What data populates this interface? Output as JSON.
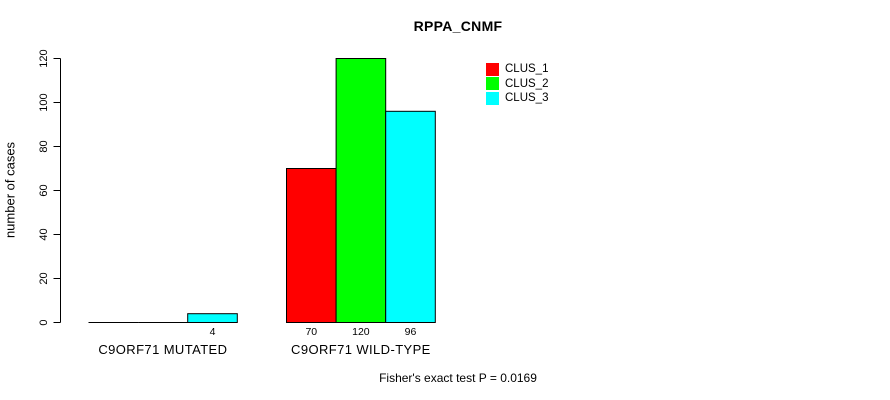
{
  "chart_data": {
    "type": "bar",
    "title": "RPPA_CNMF",
    "xlabel": "",
    "ylabel": "number of cases",
    "ylim": [
      0,
      120
    ],
    "yticks": [
      0,
      20,
      40,
      60,
      80,
      100,
      120
    ],
    "grid": false,
    "legend_position": "top-right-inside",
    "categories": [
      "C9ORF71 MUTATED",
      "C9ORF71 WILD-TYPE"
    ],
    "series": [
      {
        "name": "CLUS_1",
        "color": "#FF0000",
        "values": [
          0,
          70
        ],
        "value_labels": [
          "",
          "70"
        ]
      },
      {
        "name": "CLUS_2",
        "color": "#00FF00",
        "values": [
          0,
          120
        ],
        "value_labels": [
          "",
          "120"
        ]
      },
      {
        "name": "CLUS_3",
        "color": "#00FFFF",
        "values": [
          4,
          96
        ],
        "value_labels": [
          "4",
          "96"
        ]
      }
    ],
    "annotation": "Fisher's exact test P = 0.0169",
    "axis_color": "#000000",
    "bar_border_color": "#000000",
    "background_color": "#FFFFFF"
  }
}
